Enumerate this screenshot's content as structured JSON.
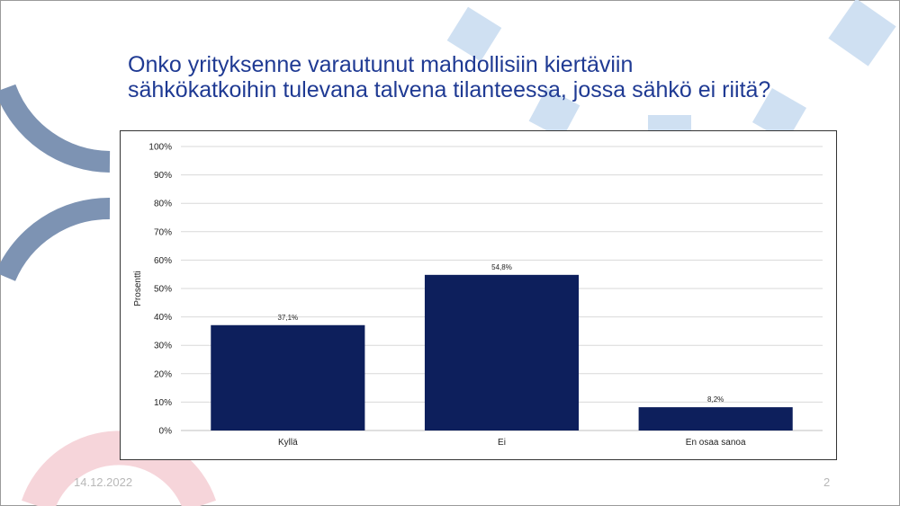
{
  "slide": {
    "title_lines": [
      "Onko yrityksenne varautunut mahdollisiin kiertäviin",
      "sähkökatkoihin tulevana talvena tilanteessa, jossa sähkö ei riitä?"
    ],
    "date": "14.12.2022",
    "page_number": "2"
  },
  "colors": {
    "title": "#1f3a93",
    "bar": "#0d1f5c",
    "deco_blue_arc": "#7d93b3",
    "deco_light_squares": "#cfe0f2",
    "deco_pink": "#f6d5da"
  },
  "chart_data": {
    "type": "bar",
    "categories": [
      "Kyllä",
      "Ei",
      "En osaa sanoa"
    ],
    "values": [
      37.1,
      54.8,
      8.2
    ],
    "value_labels": [
      "37,1%",
      "54,8%",
      "8,2%"
    ],
    "title": "",
    "xlabel": "",
    "ylabel": "Prosentti",
    "ylim": [
      0,
      100
    ],
    "yticks": [
      0,
      10,
      20,
      30,
      40,
      50,
      60,
      70,
      80,
      90,
      100
    ],
    "ytick_labels": [
      "0%",
      "10%",
      "20%",
      "30%",
      "40%",
      "50%",
      "60%",
      "70%",
      "80%",
      "90%",
      "100%"
    ],
    "grid": true,
    "legend": "none"
  }
}
